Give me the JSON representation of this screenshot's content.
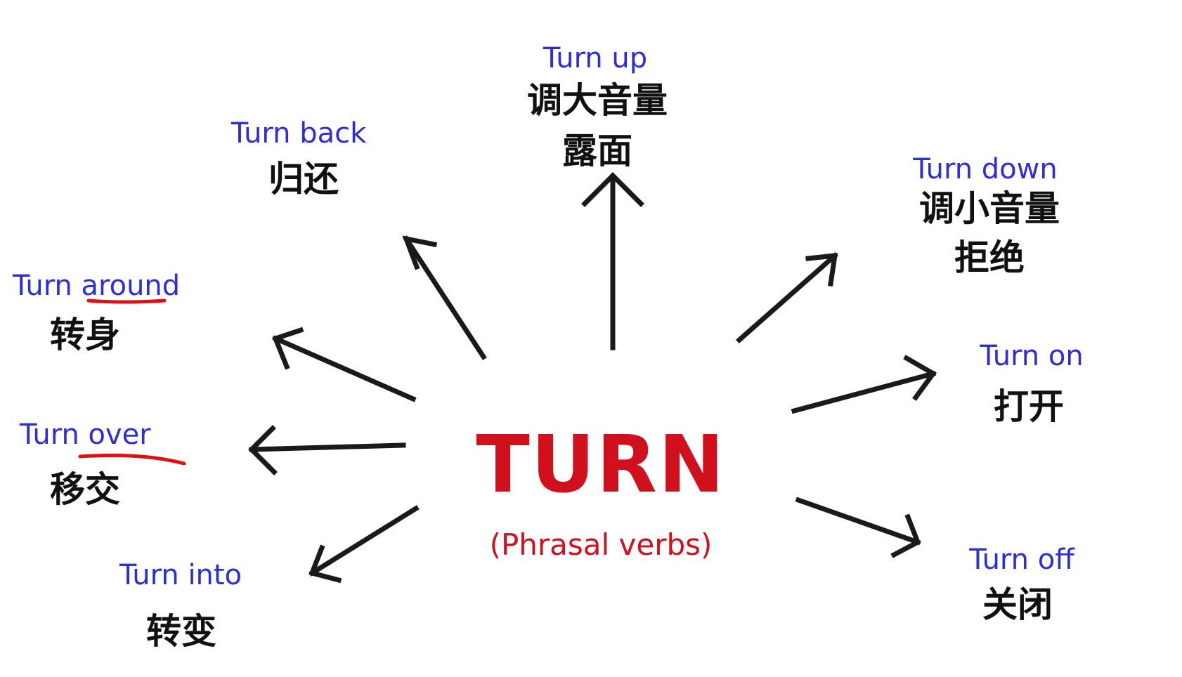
{
  "colors": {
    "english_label": "#2e2ed6",
    "chinese_label": "#111111",
    "arrow": "#1a1a1a",
    "title": "#d0101d",
    "subtitle": "#d0101d",
    "underline": "#e01010"
  },
  "center": {
    "title": "TURN",
    "subtitle": "(Phrasal verbs)"
  },
  "phrases": {
    "up": {
      "en": "Turn up",
      "zh": [
        "调大音量",
        "露面"
      ]
    },
    "back": {
      "en": "Turn back",
      "zh": [
        "归还"
      ]
    },
    "down": {
      "en": "Turn down",
      "zh": [
        "调小音量",
        "拒绝"
      ]
    },
    "around": {
      "en": "Turn around",
      "zh": [
        "转身"
      ]
    },
    "on": {
      "en": "Turn on",
      "zh": [
        "打开"
      ]
    },
    "over": {
      "en": "Turn over",
      "zh": [
        "移交"
      ]
    },
    "off": {
      "en": "Turn off",
      "zh": [
        "关闭"
      ]
    },
    "into": {
      "en": "Turn into",
      "zh": [
        "转变"
      ]
    }
  }
}
